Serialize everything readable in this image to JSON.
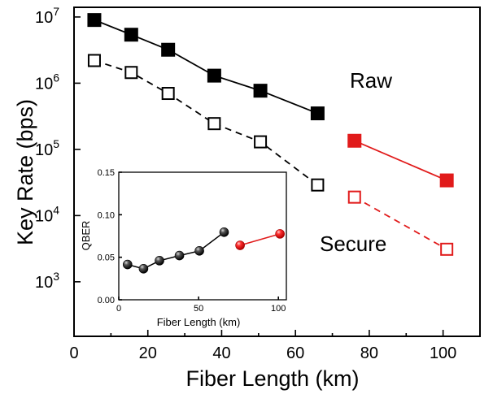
{
  "chart_data": [
    {
      "type": "line",
      "xlabel": "Fiber Length  (km)",
      "ylabel": "Key Rate (bps)",
      "xlim": [
        0,
        110
      ],
      "ylim": [
        150,
        14000000
      ],
      "yscale": "log",
      "xticks": [
        0,
        20,
        40,
        60,
        80,
        100
      ],
      "yticks": [
        {
          "value": 1000,
          "base": "10",
          "exp": "3"
        },
        {
          "value": 10000,
          "base": "10",
          "exp": "4"
        },
        {
          "value": 100000,
          "base": "10",
          "exp": "5"
        },
        {
          "value": 1000000,
          "base": "10",
          "exp": "6"
        },
        {
          "value": 10000000,
          "base": "10",
          "exp": "7"
        }
      ],
      "annotations": {
        "raw": "Raw",
        "secure": "Secure"
      },
      "series": [
        {
          "group": "raw",
          "color": "#000000",
          "marker": "filled-square",
          "line": "solid",
          "x": [
            5.5,
            15.5,
            25.5,
            38,
            50.5,
            66
          ],
          "y": [
            9000000,
            5400000,
            3200000,
            1300000,
            770000,
            350000
          ]
        },
        {
          "group": "raw",
          "color": "#e11b1b",
          "marker": "filled-square",
          "line": "solid",
          "x": [
            76,
            101
          ],
          "y": [
            135000,
            34000
          ]
        },
        {
          "group": "secure",
          "color": "#000000",
          "marker": "open-square",
          "line": "dashed",
          "x": [
            5.5,
            15.5,
            25.5,
            38,
            50.5,
            66
          ],
          "y": [
            2200000,
            1450000,
            700000,
            245000,
            130000,
            29000
          ]
        },
        {
          "group": "secure",
          "color": "#e11b1b",
          "marker": "open-square",
          "line": "dashed",
          "x": [
            76,
            101
          ],
          "y": [
            19000,
            3100
          ]
        }
      ]
    },
    {
      "type": "line",
      "xlabel": "Fiber Length (km)",
      "ylabel": "QBER",
      "xlim": [
        0,
        105
      ],
      "ylim": [
        0,
        0.15
      ],
      "xticks": [
        0,
        50,
        100
      ],
      "yticks": [
        {
          "value": 0.0,
          "label": "0.00"
        },
        {
          "value": 0.05,
          "label": "0.05"
        },
        {
          "value": 0.1,
          "label": "0.10"
        },
        {
          "value": 0.15,
          "label": "0.15"
        }
      ],
      "series": [
        {
          "color": "#000000",
          "marker": "sphere",
          "x": [
            5.5,
            15.5,
            25.5,
            38,
            50.5,
            66
          ],
          "y": [
            0.0415,
            0.0365,
            0.046,
            0.052,
            0.0575,
            0.0795
          ]
        },
        {
          "color": "#e11b1b",
          "marker": "sphere",
          "x": [
            76,
            101
          ],
          "y": [
            0.064,
            0.0775
          ]
        }
      ]
    }
  ]
}
